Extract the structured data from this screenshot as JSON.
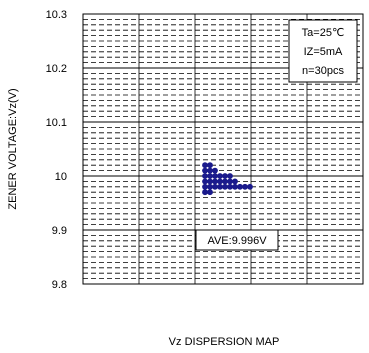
{
  "chart_data": {
    "type": "scatter",
    "title": "",
    "xlabel": "",
    "ylabel": "ZENER VOLTAGE:Vz(V)",
    "caption": "Vz DISPERSION MAP",
    "ylim": [
      9.8,
      10.3
    ],
    "y_ticks": [
      "10.3",
      "10.2",
      "10.1",
      "10",
      "9.9",
      "9.8"
    ],
    "y_tick_values": [
      10.3,
      10.2,
      10.1,
      10.0,
      9.9,
      9.8
    ],
    "conditions": [
      "Ta=25℃",
      "IZ=5mA",
      "n=30pcs"
    ],
    "average_label": "AVE:9.996V",
    "average": 9.996,
    "grid": true,
    "marker_color": "#1a1a8c",
    "points": [
      {
        "column": 1,
        "y": 10.02
      },
      {
        "column": 1,
        "y": 10.01
      },
      {
        "column": 1,
        "y": 10.0
      },
      {
        "column": 1,
        "y": 9.99
      },
      {
        "column": 1,
        "y": 9.98
      },
      {
        "column": 1,
        "y": 9.97
      },
      {
        "column": 2,
        "y": 10.02
      },
      {
        "column": 2,
        "y": 10.01
      },
      {
        "column": 2,
        "y": 10.0
      },
      {
        "column": 2,
        "y": 9.99
      },
      {
        "column": 2,
        "y": 9.98
      },
      {
        "column": 2,
        "y": 9.97
      },
      {
        "column": 3,
        "y": 10.01
      },
      {
        "column": 3,
        "y": 10.0
      },
      {
        "column": 3,
        "y": 9.99
      },
      {
        "column": 3,
        "y": 9.98
      },
      {
        "column": 4,
        "y": 10.0
      },
      {
        "column": 4,
        "y": 9.99
      },
      {
        "column": 4,
        "y": 9.98
      },
      {
        "column": 5,
        "y": 10.0
      },
      {
        "column": 5,
        "y": 9.99
      },
      {
        "column": 5,
        "y": 9.98
      },
      {
        "column": 6,
        "y": 10.0
      },
      {
        "column": 6,
        "y": 9.99
      },
      {
        "column": 6,
        "y": 9.98
      },
      {
        "column": 7,
        "y": 9.99
      },
      {
        "column": 7,
        "y": 9.98
      },
      {
        "column": 8,
        "y": 9.98
      },
      {
        "column": 9,
        "y": 9.98
      },
      {
        "column": 10,
        "y": 9.98
      }
    ]
  }
}
